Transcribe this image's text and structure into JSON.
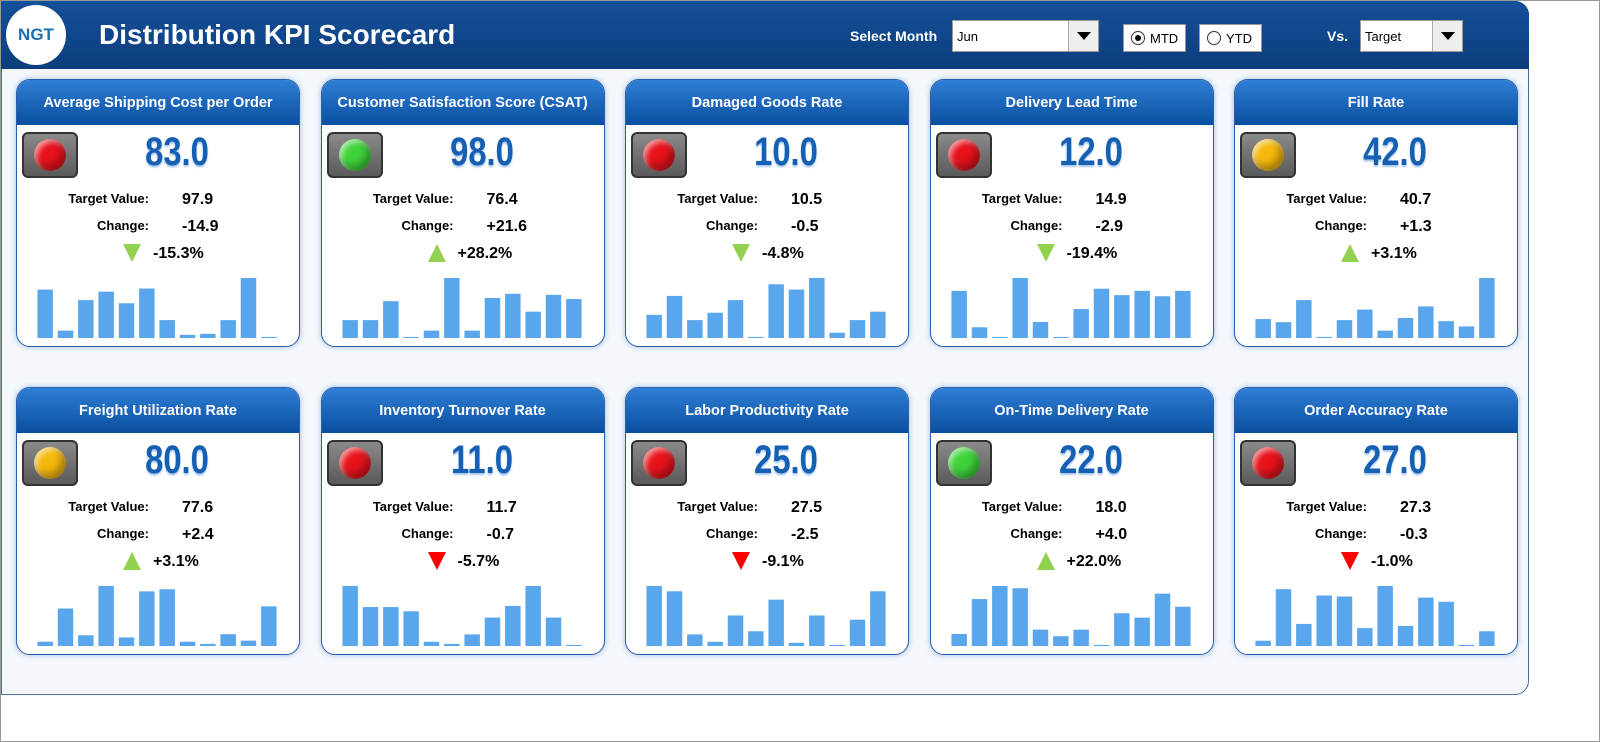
{
  "header": {
    "logo": "NGT",
    "title": "Distribution KPI Scorecard",
    "month_label": "Select Month",
    "month": "Jun",
    "options": [
      "MTD",
      "YTD"
    ],
    "selected_option": 0,
    "vs_label": "Vs.",
    "vs": "Target"
  },
  "labels": {
    "target": "Target Value:",
    "change": "Change:"
  },
  "kpis": [
    {
      "title": "Average Shipping Cost per Order",
      "value": "83.0",
      "target": "97.9",
      "change": "-14.9",
      "change_pct": "-15.3%",
      "status_color": "#e8121b",
      "arrow": "down",
      "arrow_color": "#92d050",
      "bars": [
        46,
        7,
        36,
        44,
        33,
        47,
        17,
        3,
        4,
        17,
        57,
        1
      ]
    },
    {
      "title": "Customer Satisfaction Score (CSAT)",
      "value": "98.0",
      "target": "76.4",
      "change": "+21.6",
      "change_pct": "+28.2%",
      "status_color": "#3fd33a",
      "arrow": "up",
      "arrow_color": "#92d050",
      "bars": [
        17,
        17,
        35,
        1,
        7,
        57,
        7,
        38,
        42,
        25,
        41,
        37
      ]
    },
    {
      "title": "Damaged Goods Rate",
      "value": "10.0",
      "target": "10.5",
      "change": "-0.5",
      "change_pct": "-4.8%",
      "status_color": "#e8121b",
      "arrow": "down",
      "arrow_color": "#92d050",
      "bars": [
        22,
        40,
        17,
        24,
        36,
        1,
        51,
        46,
        57,
        5,
        17,
        25
      ]
    },
    {
      "title": "Delivery Lead Time",
      "value": "12.0",
      "target": "14.9",
      "change": "-2.9",
      "change_pct": "-19.4%",
      "status_color": "#e8121b",
      "arrow": "down",
      "arrow_color": "#92d050",
      "bars": [
        44,
        10,
        1,
        56,
        15,
        1,
        27,
        46,
        40,
        44,
        39,
        44
      ]
    },
    {
      "title": "Fill Rate",
      "value": "42.0",
      "target": "40.7",
      "change": "+1.3",
      "change_pct": "+3.1%",
      "status_color": "#f5b80c",
      "arrow": "up",
      "arrow_color": "#92d050",
      "bars": [
        18,
        15,
        36,
        1,
        17,
        27,
        7,
        19,
        30,
        16,
        11,
        57
      ]
    },
    {
      "title": "Freight Utilization Rate",
      "value": "80.0",
      "target": "77.6",
      "change": "+2.4",
      "change_pct": "+3.1%",
      "status_color": "#f5b80c",
      "arrow": "up",
      "arrow_color": "#92d050",
      "bars": [
        4,
        35,
        10,
        56,
        8,
        51,
        53,
        4,
        2,
        11,
        5,
        37
      ]
    },
    {
      "title": "Inventory Turnover Rate",
      "value": "11.0",
      "target": "11.7",
      "change": "-0.7",
      "change_pct": "-5.7%",
      "status_color": "#e8121b",
      "arrow": "down",
      "arrow_color": "#ff0000",
      "bars": [
        57,
        37,
        37,
        33,
        4,
        2,
        11,
        27,
        38,
        57,
        27,
        1
      ]
    },
    {
      "title": "Labor Productivity Rate",
      "value": "25.0",
      "target": "27.5",
      "change": "-2.5",
      "change_pct": "-9.1%",
      "status_color": "#e8121b",
      "arrow": "down",
      "arrow_color": "#ff0000",
      "bars": [
        57,
        52,
        11,
        4,
        29,
        14,
        44,
        3,
        29,
        1,
        25,
        52
      ]
    },
    {
      "title": "On-Time Delivery Rate",
      "value": "22.0",
      "target": "18.0",
      "change": "+4.0",
      "change_pct": "+22.0%",
      "status_color": "#3fd33a",
      "arrow": "up",
      "arrow_color": "#92d050",
      "bars": [
        11,
        43,
        55,
        53,
        15,
        9,
        15,
        1,
        30,
        26,
        48,
        36
      ]
    },
    {
      "title": "Order Accuracy Rate",
      "value": "27.0",
      "target": "27.3",
      "change": "-0.3",
      "change_pct": "-1.0%",
      "status_color": "#e8121b",
      "arrow": "down",
      "arrow_color": "#ff0000",
      "bars": [
        5,
        54,
        21,
        48,
        47,
        17,
        57,
        19,
        46,
        42,
        1,
        14
      ]
    }
  ]
}
